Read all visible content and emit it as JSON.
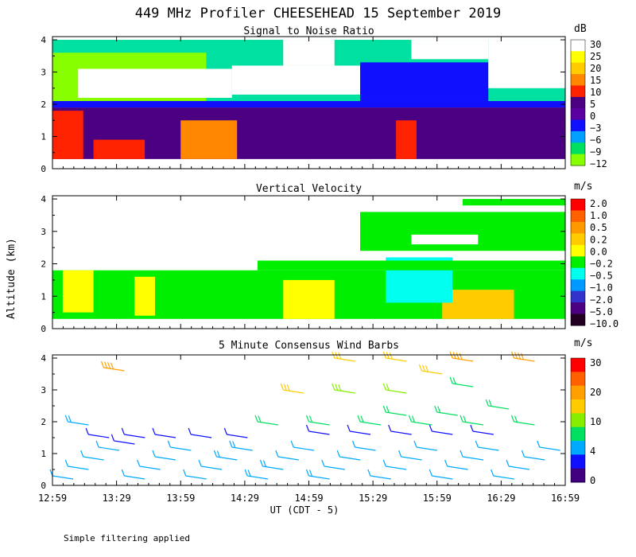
{
  "title": "449 MHz Profiler CHEESEHEAD 15 September 2019",
  "ylabel": "Altitude (km)",
  "xlabel": "UT  (CDT - 5)",
  "footnote": "Simple filtering applied",
  "x_ticks": [
    "12:59",
    "13:29",
    "13:59",
    "14:29",
    "14:59",
    "15:29",
    "15:59",
    "16:29",
    "16:59"
  ],
  "y_ticks": [
    "0",
    "1",
    "2",
    "3",
    "4"
  ],
  "chart_data": [
    {
      "type": "heatmap",
      "title": "Signal to Noise Ratio",
      "units": "dB",
      "ylim": [
        0,
        4.1
      ],
      "colorbar_labels": [
        "30",
        "25",
        "20",
        "15",
        "10",
        "5",
        "0",
        "−3",
        "−6",
        "−9",
        "−12"
      ],
      "colorbar_colors": [
        "#ffffff",
        "#ffff00",
        "#ffcc00",
        "#ff8800",
        "#ff2200",
        "#4b0082",
        "#5a00a0",
        "#1010ff",
        "#00a0ff",
        "#00e060",
        "#88ff00"
      ],
      "features": [
        {
          "t0": 0.0,
          "t1": 1.0,
          "a0": 0.3,
          "a1": 1.9,
          "color": "#4b0082"
        },
        {
          "t0": 0.0,
          "t1": 1.0,
          "a0": 1.9,
          "a1": 2.1,
          "color": "#1010ff"
        },
        {
          "t0": 0.0,
          "t1": 1.0,
          "a0": 2.1,
          "a1": 4.0,
          "color": "#00e0a0"
        },
        {
          "t0": 0.0,
          "t1": 0.3,
          "a0": 2.1,
          "a1": 3.6,
          "color": "#88ff00"
        },
        {
          "t0": 0.05,
          "t1": 0.35,
          "a0": 2.2,
          "a1": 3.1,
          "color": "#ffffff"
        },
        {
          "t0": 0.35,
          "t1": 0.6,
          "a0": 2.3,
          "a1": 3.2,
          "color": "#ffffff"
        },
        {
          "t0": 0.45,
          "t1": 0.55,
          "a0": 3.2,
          "a1": 4.0,
          "color": "#ffffff"
        },
        {
          "t0": 0.6,
          "t1": 0.85,
          "a0": 2.1,
          "a1": 3.3,
          "color": "#1010ff"
        },
        {
          "t0": 0.7,
          "t1": 0.85,
          "a0": 3.4,
          "a1": 4.0,
          "color": "#ffffff"
        },
        {
          "t0": 0.85,
          "t1": 1.0,
          "a0": 2.5,
          "a1": 4.0,
          "color": "#ffffff"
        },
        {
          "t0": 0.0,
          "t1": 0.06,
          "a0": 0.3,
          "a1": 1.8,
          "color": "#ff2200"
        },
        {
          "t0": 0.08,
          "t1": 0.18,
          "a0": 0.3,
          "a1": 0.9,
          "color": "#ff2200"
        },
        {
          "t0": 0.25,
          "t1": 0.36,
          "a0": 0.3,
          "a1": 1.5,
          "color": "#ff8800"
        },
        {
          "t0": 0.67,
          "t1": 0.71,
          "a0": 0.3,
          "a1": 1.5,
          "color": "#ff2200"
        }
      ]
    },
    {
      "type": "heatmap",
      "title": "Vertical Velocity",
      "units": "m/s",
      "ylim": [
        0,
        4.1
      ],
      "colorbar_labels": [
        "2.0",
        "1.0",
        "0.5",
        "0.2",
        "0.0",
        "−0.2",
        "−0.5",
        "−1.0",
        "−2.0",
        "−5.0",
        "−10.0"
      ],
      "colorbar_colors": [
        "#ff0000",
        "#ff6000",
        "#ff9900",
        "#ffcc00",
        "#ffff00",
        "#00ee00",
        "#00ffee",
        "#0099ff",
        "#3333cc",
        "#4b0082",
        "#220022"
      ],
      "features": [
        {
          "t0": 0.0,
          "t1": 1.0,
          "a0": 0.3,
          "a1": 1.8,
          "color": "#00ee00"
        },
        {
          "t0": 0.02,
          "t1": 0.08,
          "a0": 0.5,
          "a1": 1.8,
          "color": "#ffff00"
        },
        {
          "t0": 0.16,
          "t1": 0.2,
          "a0": 0.4,
          "a1": 1.6,
          "color": "#ffff00"
        },
        {
          "t0": 0.45,
          "t1": 0.55,
          "a0": 0.3,
          "a1": 1.5,
          "color": "#ffff00"
        },
        {
          "t0": 0.76,
          "t1": 0.9,
          "a0": 0.3,
          "a1": 1.2,
          "color": "#ffcc00"
        },
        {
          "t0": 0.65,
          "t1": 0.78,
          "a0": 0.8,
          "a1": 2.2,
          "color": "#00ffee"
        },
        {
          "t0": 0.4,
          "t1": 1.0,
          "a0": 1.8,
          "a1": 2.1,
          "color": "#00ee00"
        },
        {
          "t0": 0.6,
          "t1": 1.0,
          "a0": 2.4,
          "a1": 3.6,
          "color": "#00ee00"
        },
        {
          "t0": 0.7,
          "t1": 0.83,
          "a0": 2.6,
          "a1": 2.9,
          "color": "#ffffff"
        },
        {
          "t0": 0.8,
          "t1": 1.0,
          "a0": 3.8,
          "a1": 4.0,
          "color": "#00ee00"
        }
      ]
    },
    {
      "type": "scatter",
      "title": "5 Minute Consensus Wind Barbs",
      "units": "m/s",
      "ylim": [
        0,
        4.1
      ],
      "colorbar_labels": [
        "30",
        "20",
        "10",
        "4",
        "0"
      ],
      "colorbar_colors": [
        "#ff0000",
        "#ff6000",
        "#ffa000",
        "#ffcc00",
        "#88ee00",
        "#00e060",
        "#00aaff",
        "#1010ff",
        "#400080"
      ],
      "barbs": [
        {
          "t": 0.0,
          "alt": 0.3,
          "speed": 8
        },
        {
          "t": 0.03,
          "alt": 0.6,
          "speed": 8
        },
        {
          "t": 0.06,
          "alt": 0.9,
          "speed": 7
        },
        {
          "t": 0.09,
          "alt": 1.2,
          "speed": 6
        },
        {
          "t": 0.12,
          "alt": 1.4,
          "speed": 5
        },
        {
          "t": 0.14,
          "alt": 0.3,
          "speed": 7
        },
        {
          "t": 0.17,
          "alt": 0.6,
          "speed": 7
        },
        {
          "t": 0.2,
          "alt": 0.9,
          "speed": 8
        },
        {
          "t": 0.23,
          "alt": 1.2,
          "speed": 6
        },
        {
          "t": 0.26,
          "alt": 0.3,
          "speed": 8
        },
        {
          "t": 0.29,
          "alt": 0.6,
          "speed": 8
        },
        {
          "t": 0.32,
          "alt": 0.9,
          "speed": 9
        },
        {
          "t": 0.35,
          "alt": 1.2,
          "speed": 9
        },
        {
          "t": 0.38,
          "alt": 0.3,
          "speed": 9
        },
        {
          "t": 0.41,
          "alt": 0.6,
          "speed": 9
        },
        {
          "t": 0.44,
          "alt": 0.9,
          "speed": 8
        },
        {
          "t": 0.47,
          "alt": 1.2,
          "speed": 8
        },
        {
          "t": 0.5,
          "alt": 0.3,
          "speed": 9
        },
        {
          "t": 0.53,
          "alt": 0.6,
          "speed": 8
        },
        {
          "t": 0.56,
          "alt": 0.9,
          "speed": 8
        },
        {
          "t": 0.59,
          "alt": 1.2,
          "speed": 8
        },
        {
          "t": 0.62,
          "alt": 0.3,
          "speed": 7
        },
        {
          "t": 0.65,
          "alt": 0.6,
          "speed": 7
        },
        {
          "t": 0.68,
          "alt": 0.9,
          "speed": 7
        },
        {
          "t": 0.71,
          "alt": 1.2,
          "speed": 7
        },
        {
          "t": 0.74,
          "alt": 0.3,
          "speed": 8
        },
        {
          "t": 0.77,
          "alt": 0.6,
          "speed": 8
        },
        {
          "t": 0.8,
          "alt": 0.9,
          "speed": 8
        },
        {
          "t": 0.83,
          "alt": 1.2,
          "speed": 8
        },
        {
          "t": 0.86,
          "alt": 0.3,
          "speed": 8
        },
        {
          "t": 0.89,
          "alt": 0.6,
          "speed": 8
        },
        {
          "t": 0.92,
          "alt": 0.9,
          "speed": 8
        },
        {
          "t": 0.95,
          "alt": 1.2,
          "speed": 8
        },
        {
          "t": 0.07,
          "alt": 1.6,
          "speed": 3
        },
        {
          "t": 0.14,
          "alt": 1.6,
          "speed": 3
        },
        {
          "t": 0.2,
          "alt": 1.6,
          "speed": 2
        },
        {
          "t": 0.27,
          "alt": 1.6,
          "speed": 3
        },
        {
          "t": 0.34,
          "alt": 1.6,
          "speed": 3
        },
        {
          "t": 0.5,
          "alt": 1.7,
          "speed": 5
        },
        {
          "t": 0.58,
          "alt": 1.7,
          "speed": 5
        },
        {
          "t": 0.66,
          "alt": 1.7,
          "speed": 5
        },
        {
          "t": 0.74,
          "alt": 1.7,
          "speed": 5
        },
        {
          "t": 0.82,
          "alt": 1.7,
          "speed": 5
        },
        {
          "t": 0.03,
          "alt": 2.0,
          "speed": 9
        },
        {
          "t": 0.4,
          "alt": 2.0,
          "speed": 10
        },
        {
          "t": 0.5,
          "alt": 2.0,
          "speed": 10
        },
        {
          "t": 0.6,
          "alt": 2.0,
          "speed": 10
        },
        {
          "t": 0.7,
          "alt": 2.0,
          "speed": 10
        },
        {
          "t": 0.8,
          "alt": 2.0,
          "speed": 10
        },
        {
          "t": 0.9,
          "alt": 2.0,
          "speed": 10
        },
        {
          "t": 0.65,
          "alt": 2.3,
          "speed": 12
        },
        {
          "t": 0.75,
          "alt": 2.3,
          "speed": 12
        },
        {
          "t": 0.85,
          "alt": 2.5,
          "speed": 12
        },
        {
          "t": 0.45,
          "alt": 3.0,
          "speed": 20
        },
        {
          "t": 0.55,
          "alt": 3.0,
          "speed": 16
        },
        {
          "t": 0.65,
          "alt": 3.0,
          "speed": 14
        },
        {
          "t": 0.78,
          "alt": 3.2,
          "speed": 12
        },
        {
          "t": 0.1,
          "alt": 3.7,
          "speed": 22
        },
        {
          "t": 0.55,
          "alt": 4.0,
          "speed": 20
        },
        {
          "t": 0.65,
          "alt": 4.0,
          "speed": 20
        },
        {
          "t": 0.78,
          "alt": 4.0,
          "speed": 21
        },
        {
          "t": 0.9,
          "alt": 4.0,
          "speed": 22
        },
        {
          "t": 0.72,
          "alt": 3.6,
          "speed": 20
        }
      ]
    }
  ]
}
